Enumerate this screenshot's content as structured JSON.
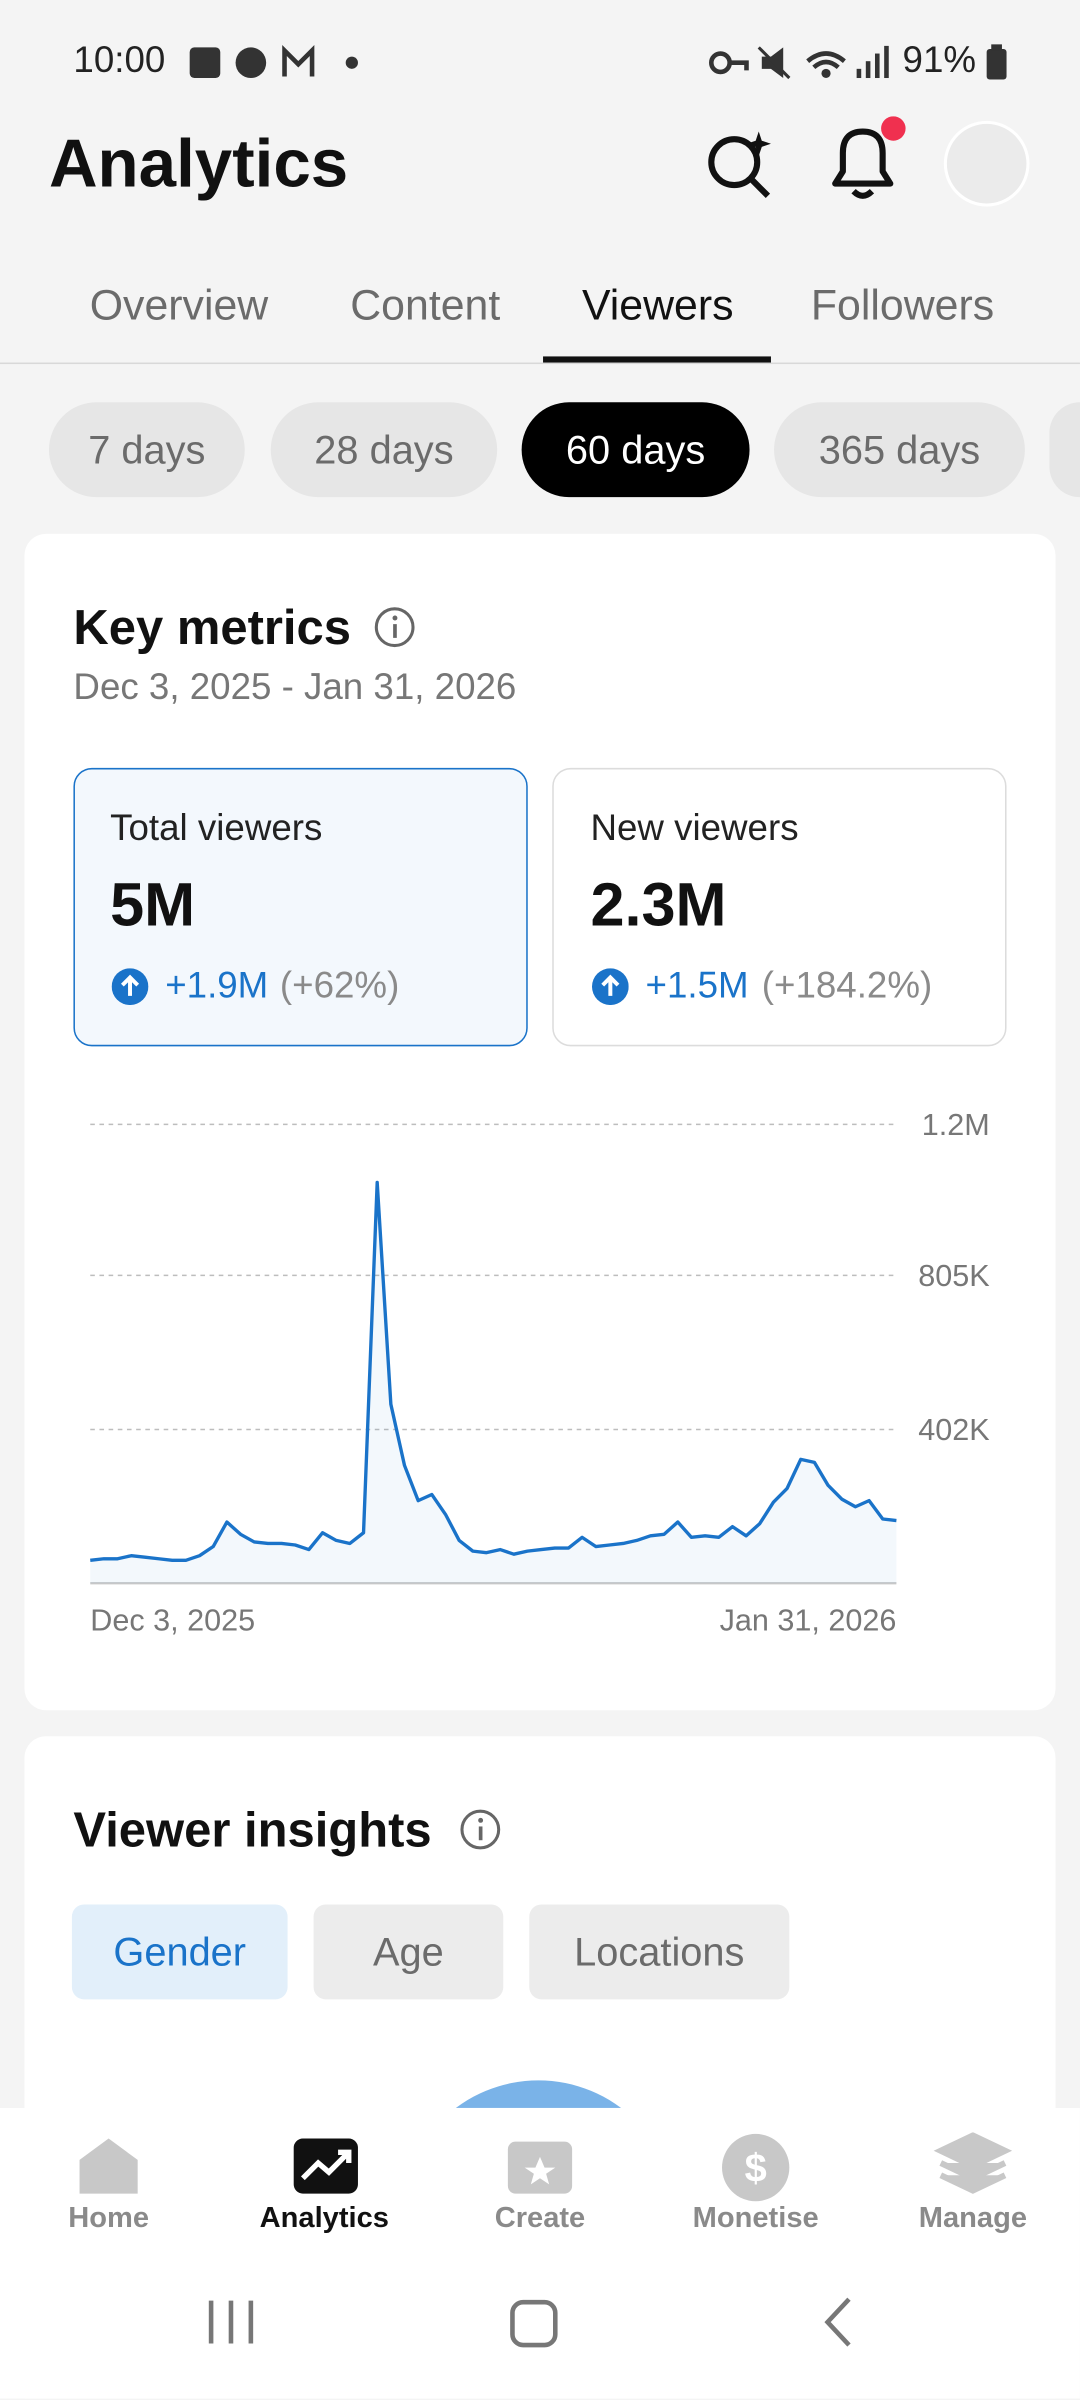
{
  "status_bar": {
    "time": "10:00",
    "battery": "91%"
  },
  "header": {
    "title": "Analytics"
  },
  "tabs": [
    "Overview",
    "Content",
    "Viewers",
    "Followers"
  ],
  "periods": [
    "7 days",
    "28 days",
    "60 days",
    "365 days"
  ],
  "key_metrics": {
    "title": "Key metrics",
    "date_range": "Dec 3, 2025 - Jan 31, 2026",
    "cards": [
      {
        "label": "Total viewers",
        "value": "5M",
        "change": "+1.9M",
        "change_pct": "(+62%)"
      },
      {
        "label": "New viewers",
        "value": "2.3M",
        "change": "+1.5M",
        "change_pct": "(+184.2%)"
      }
    ]
  },
  "chart_data": {
    "type": "line",
    "color": "#1a73c9",
    "categories": [
      "Dec 3, 2025",
      null,
      null,
      null,
      null,
      null,
      null,
      null,
      null,
      null,
      null,
      null,
      null,
      null,
      null,
      null,
      null,
      null,
      null,
      null,
      null,
      null,
      null,
      null,
      null,
      null,
      null,
      null,
      null,
      null,
      null,
      null,
      null,
      null,
      null,
      null,
      null,
      null,
      null,
      null,
      null,
      null,
      null,
      null,
      null,
      null,
      null,
      null,
      null,
      null,
      null,
      null,
      null,
      null,
      null,
      null,
      null,
      null,
      null,
      "Jan 31, 2026"
    ],
    "values": [
      60000,
      64000,
      64000,
      72000,
      68000,
      64000,
      60000,
      60000,
      72000,
      96000,
      160000,
      128000,
      108000,
      104000,
      104000,
      100000,
      88000,
      132000,
      112000,
      104000,
      132000,
      1048000,
      468000,
      308000,
      216000,
      232000,
      180000,
      112000,
      84000,
      80000,
      88000,
      76000,
      84000,
      88000,
      92000,
      92000,
      120000,
      96000,
      100000,
      104000,
      112000,
      124000,
      128000,
      160000,
      120000,
      124000,
      120000,
      148000,
      124000,
      156000,
      212000,
      248000,
      324000,
      316000,
      256000,
      220000,
      200000,
      216000,
      168000,
      164000
    ],
    "ylim": [
      0,
      1200000
    ],
    "yticks": [
      {
        "value": 402000,
        "label": "402K"
      },
      {
        "value": 805000,
        "label": "805K"
      },
      {
        "value": 1200000,
        "label": "1.2M"
      }
    ],
    "grid": true
  },
  "viewer_insights": {
    "title": "Viewer insights",
    "tabs": [
      "Gender",
      "Age",
      "Locations"
    ]
  },
  "bottom_nav": [
    "Home",
    "Analytics",
    "Create",
    "Monetise",
    "Manage"
  ]
}
